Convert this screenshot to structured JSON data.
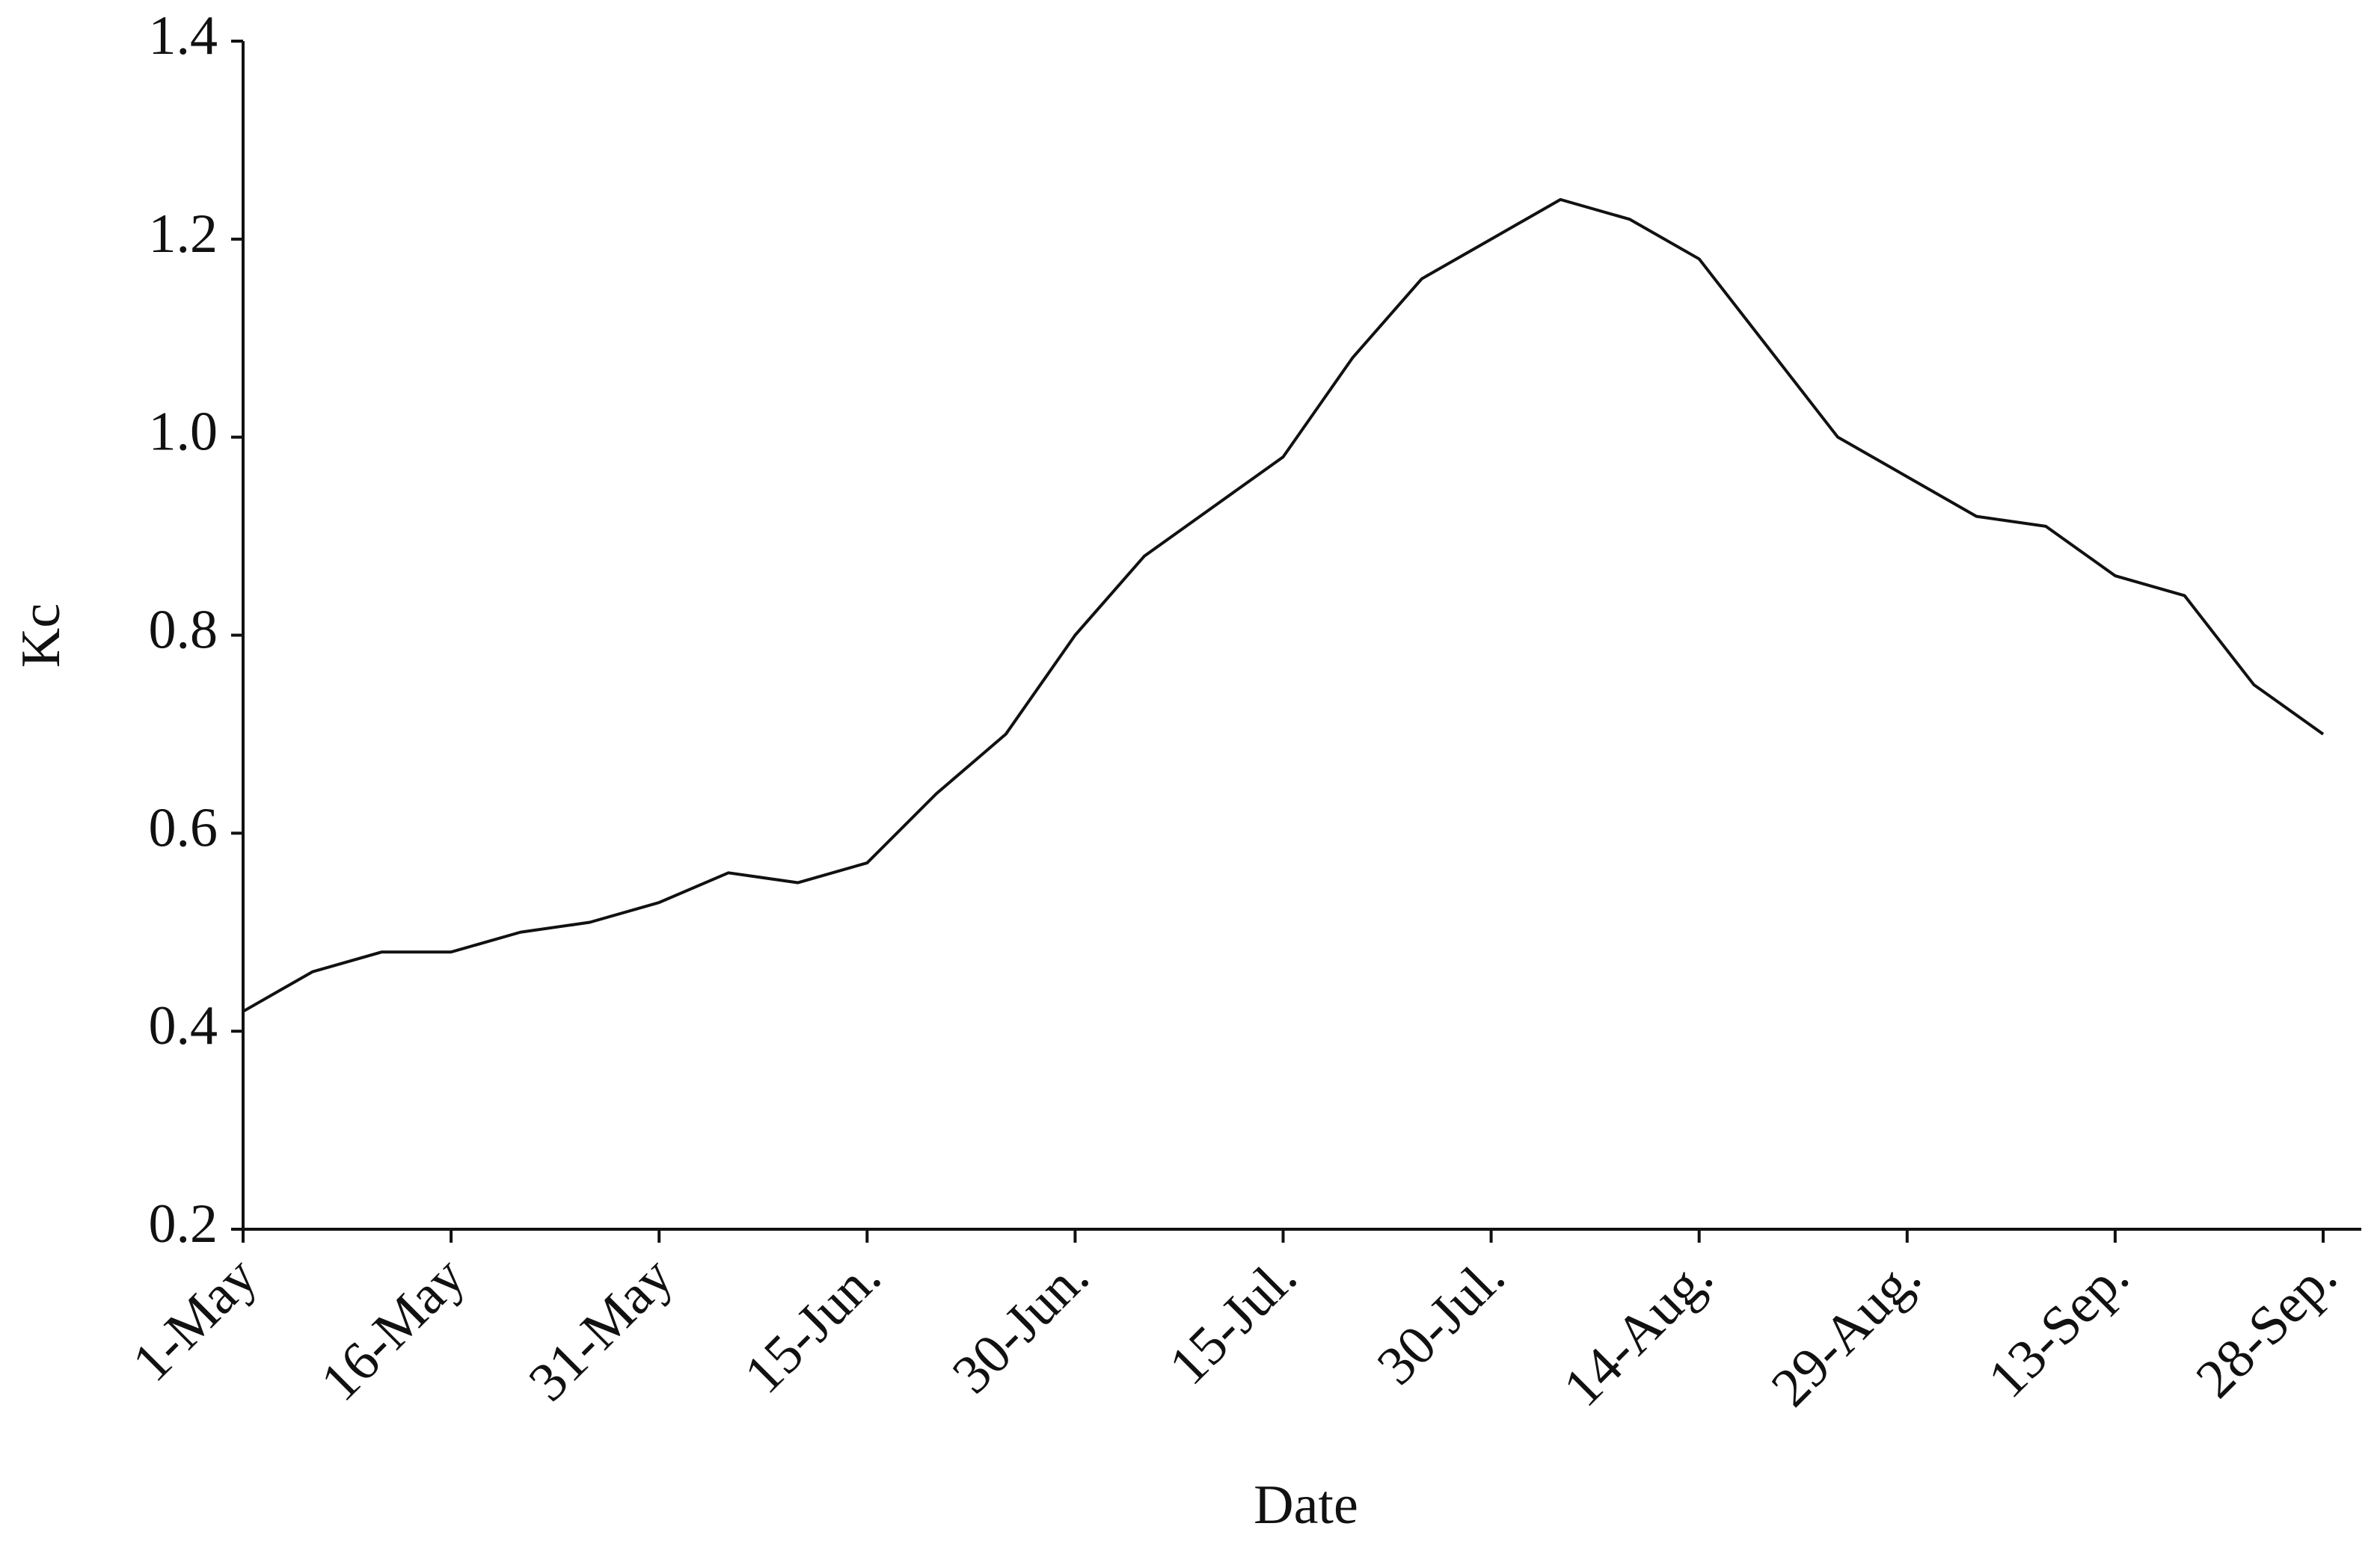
{
  "chart_data": {
    "type": "line",
    "x_label": "Date",
    "y_label": "Kc",
    "categories": [
      "1-May",
      null,
      null,
      "16-May",
      null,
      null,
      "31-May",
      null,
      null,
      "15-Jun.",
      null,
      null,
      "30-Jun.",
      null,
      null,
      "15-Jul.",
      null,
      null,
      "30-Jul.",
      null,
      null,
      "14-Aug.",
      null,
      null,
      "29-Aug.",
      null,
      null,
      "13-Sep.",
      null,
      null,
      "28-Sep."
    ],
    "series": [
      {
        "name": "Kc",
        "color": "#111111",
        "values": [
          0.42,
          0.46,
          0.48,
          0.48,
          0.5,
          0.51,
          0.53,
          0.56,
          0.55,
          0.57,
          0.64,
          0.7,
          0.8,
          0.88,
          0.93,
          0.98,
          1.08,
          1.16,
          1.2,
          1.24,
          1.22,
          1.18,
          1.09,
          1.0,
          0.96,
          0.92,
          0.91,
          0.86,
          0.84,
          0.75,
          0.7
        ]
      }
    ],
    "ylim": [
      0.2,
      1.4
    ],
    "yticks": [
      0.2,
      0.4,
      0.6,
      0.8,
      {
        "value": 1,
        "label": "1.0"
      },
      1.2,
      1.4
    ],
    "grid": false
  }
}
